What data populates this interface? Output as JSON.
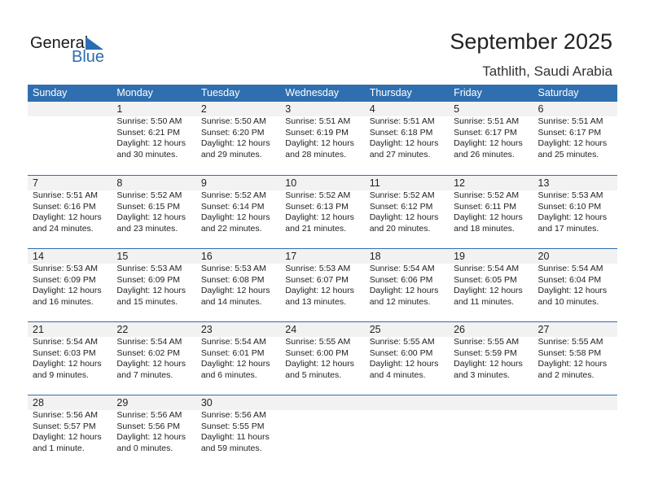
{
  "logo": {
    "text1": "General",
    "text2": "Blue"
  },
  "title": "September 2025",
  "location": "Tathlith, Saudi Arabia",
  "colors": {
    "header": "#2f6fb0",
    "band": "#f2f2f2"
  },
  "days": [
    "Sunday",
    "Monday",
    "Tuesday",
    "Wednesday",
    "Thursday",
    "Friday",
    "Saturday"
  ],
  "weeks": [
    [
      null,
      {
        "day": "1",
        "sunrise": "Sunrise: 5:50 AM",
        "sunset": "Sunset: 6:21 PM",
        "daylight1": "Daylight: 12 hours",
        "daylight2": "and 30 minutes."
      },
      {
        "day": "2",
        "sunrise": "Sunrise: 5:50 AM",
        "sunset": "Sunset: 6:20 PM",
        "daylight1": "Daylight: 12 hours",
        "daylight2": "and 29 minutes."
      },
      {
        "day": "3",
        "sunrise": "Sunrise: 5:51 AM",
        "sunset": "Sunset: 6:19 PM",
        "daylight1": "Daylight: 12 hours",
        "daylight2": "and 28 minutes."
      },
      {
        "day": "4",
        "sunrise": "Sunrise: 5:51 AM",
        "sunset": "Sunset: 6:18 PM",
        "daylight1": "Daylight: 12 hours",
        "daylight2": "and 27 minutes."
      },
      {
        "day": "5",
        "sunrise": "Sunrise: 5:51 AM",
        "sunset": "Sunset: 6:17 PM",
        "daylight1": "Daylight: 12 hours",
        "daylight2": "and 26 minutes."
      },
      {
        "day": "6",
        "sunrise": "Sunrise: 5:51 AM",
        "sunset": "Sunset: 6:17 PM",
        "daylight1": "Daylight: 12 hours",
        "daylight2": "and 25 minutes."
      }
    ],
    [
      {
        "day": "7",
        "sunrise": "Sunrise: 5:51 AM",
        "sunset": "Sunset: 6:16 PM",
        "daylight1": "Daylight: 12 hours",
        "daylight2": "and 24 minutes."
      },
      {
        "day": "8",
        "sunrise": "Sunrise: 5:52 AM",
        "sunset": "Sunset: 6:15 PM",
        "daylight1": "Daylight: 12 hours",
        "daylight2": "and 23 minutes."
      },
      {
        "day": "9",
        "sunrise": "Sunrise: 5:52 AM",
        "sunset": "Sunset: 6:14 PM",
        "daylight1": "Daylight: 12 hours",
        "daylight2": "and 22 minutes."
      },
      {
        "day": "10",
        "sunrise": "Sunrise: 5:52 AM",
        "sunset": "Sunset: 6:13 PM",
        "daylight1": "Daylight: 12 hours",
        "daylight2": "and 21 minutes."
      },
      {
        "day": "11",
        "sunrise": "Sunrise: 5:52 AM",
        "sunset": "Sunset: 6:12 PM",
        "daylight1": "Daylight: 12 hours",
        "daylight2": "and 20 minutes."
      },
      {
        "day": "12",
        "sunrise": "Sunrise: 5:52 AM",
        "sunset": "Sunset: 6:11 PM",
        "daylight1": "Daylight: 12 hours",
        "daylight2": "and 18 minutes."
      },
      {
        "day": "13",
        "sunrise": "Sunrise: 5:53 AM",
        "sunset": "Sunset: 6:10 PM",
        "daylight1": "Daylight: 12 hours",
        "daylight2": "and 17 minutes."
      }
    ],
    [
      {
        "day": "14",
        "sunrise": "Sunrise: 5:53 AM",
        "sunset": "Sunset: 6:09 PM",
        "daylight1": "Daylight: 12 hours",
        "daylight2": "and 16 minutes."
      },
      {
        "day": "15",
        "sunrise": "Sunrise: 5:53 AM",
        "sunset": "Sunset: 6:09 PM",
        "daylight1": "Daylight: 12 hours",
        "daylight2": "and 15 minutes."
      },
      {
        "day": "16",
        "sunrise": "Sunrise: 5:53 AM",
        "sunset": "Sunset: 6:08 PM",
        "daylight1": "Daylight: 12 hours",
        "daylight2": "and 14 minutes."
      },
      {
        "day": "17",
        "sunrise": "Sunrise: 5:53 AM",
        "sunset": "Sunset: 6:07 PM",
        "daylight1": "Daylight: 12 hours",
        "daylight2": "and 13 minutes."
      },
      {
        "day": "18",
        "sunrise": "Sunrise: 5:54 AM",
        "sunset": "Sunset: 6:06 PM",
        "daylight1": "Daylight: 12 hours",
        "daylight2": "and 12 minutes."
      },
      {
        "day": "19",
        "sunrise": "Sunrise: 5:54 AM",
        "sunset": "Sunset: 6:05 PM",
        "daylight1": "Daylight: 12 hours",
        "daylight2": "and 11 minutes."
      },
      {
        "day": "20",
        "sunrise": "Sunrise: 5:54 AM",
        "sunset": "Sunset: 6:04 PM",
        "daylight1": "Daylight: 12 hours",
        "daylight2": "and 10 minutes."
      }
    ],
    [
      {
        "day": "21",
        "sunrise": "Sunrise: 5:54 AM",
        "sunset": "Sunset: 6:03 PM",
        "daylight1": "Daylight: 12 hours",
        "daylight2": "and 9 minutes."
      },
      {
        "day": "22",
        "sunrise": "Sunrise: 5:54 AM",
        "sunset": "Sunset: 6:02 PM",
        "daylight1": "Daylight: 12 hours",
        "daylight2": "and 7 minutes."
      },
      {
        "day": "23",
        "sunrise": "Sunrise: 5:54 AM",
        "sunset": "Sunset: 6:01 PM",
        "daylight1": "Daylight: 12 hours",
        "daylight2": "and 6 minutes."
      },
      {
        "day": "24",
        "sunrise": "Sunrise: 5:55 AM",
        "sunset": "Sunset: 6:00 PM",
        "daylight1": "Daylight: 12 hours",
        "daylight2": "and 5 minutes."
      },
      {
        "day": "25",
        "sunrise": "Sunrise: 5:55 AM",
        "sunset": "Sunset: 6:00 PM",
        "daylight1": "Daylight: 12 hours",
        "daylight2": "and 4 minutes."
      },
      {
        "day": "26",
        "sunrise": "Sunrise: 5:55 AM",
        "sunset": "Sunset: 5:59 PM",
        "daylight1": "Daylight: 12 hours",
        "daylight2": "and 3 minutes."
      },
      {
        "day": "27",
        "sunrise": "Sunrise: 5:55 AM",
        "sunset": "Sunset: 5:58 PM",
        "daylight1": "Daylight: 12 hours",
        "daylight2": "and 2 minutes."
      }
    ],
    [
      {
        "day": "28",
        "sunrise": "Sunrise: 5:56 AM",
        "sunset": "Sunset: 5:57 PM",
        "daylight1": "Daylight: 12 hours",
        "daylight2": "and 1 minute."
      },
      {
        "day": "29",
        "sunrise": "Sunrise: 5:56 AM",
        "sunset": "Sunset: 5:56 PM",
        "daylight1": "Daylight: 12 hours",
        "daylight2": "and 0 minutes."
      },
      {
        "day": "30",
        "sunrise": "Sunrise: 5:56 AM",
        "sunset": "Sunset: 5:55 PM",
        "daylight1": "Daylight: 11 hours",
        "daylight2": "and 59 minutes."
      },
      null,
      null,
      null,
      null
    ]
  ]
}
